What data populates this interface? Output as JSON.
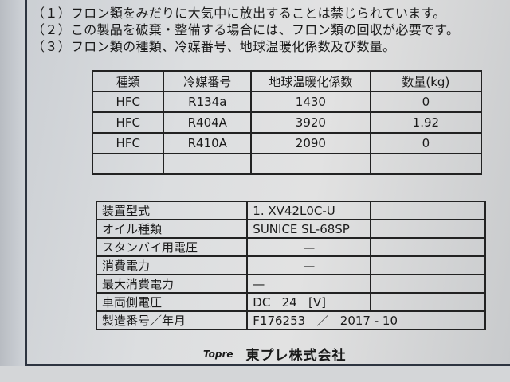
{
  "notes": [
    "（１）フロン類をみだりに大気中に放出することは禁じられています。",
    "（２）この製品を破棄・整備する場合には、フロン類の回収が必要です。",
    "（３）フロン類の種類、冷媒番号、地球温暖化係数及び数量。"
  ],
  "refrigerant_table": {
    "headers": [
      "種類",
      "冷媒番号",
      "地球温暖化係数",
      "数量(kg)"
    ],
    "rows": [
      [
        "HFC",
        "R134a",
        "1430",
        "0"
      ],
      [
        "HFC",
        "R404A",
        "3920",
        "1.92"
      ],
      [
        "HFC",
        "R410A",
        "2090",
        "0"
      ],
      [
        "",
        "",
        "",
        ""
      ]
    ]
  },
  "spec_table": {
    "rows": [
      [
        "装置型式",
        "1.  XV42L0C-U",
        ""
      ],
      [
        "オイル種類",
        "SUNICE SL-68SP",
        ""
      ],
      [
        "スタンバイ用電圧",
        "—",
        ""
      ],
      [
        "消費電力",
        "—",
        ""
      ],
      [
        "最大消費電力",
        "—",
        ""
      ],
      [
        "車両側電圧",
        "DC   24   [V]",
        ""
      ],
      [
        "製造番号／年月",
        "F176253   ／   2017 - 10",
        ""
      ]
    ]
  },
  "maker": {
    "logo": "Topre",
    "name": "東プレ株式会社"
  }
}
